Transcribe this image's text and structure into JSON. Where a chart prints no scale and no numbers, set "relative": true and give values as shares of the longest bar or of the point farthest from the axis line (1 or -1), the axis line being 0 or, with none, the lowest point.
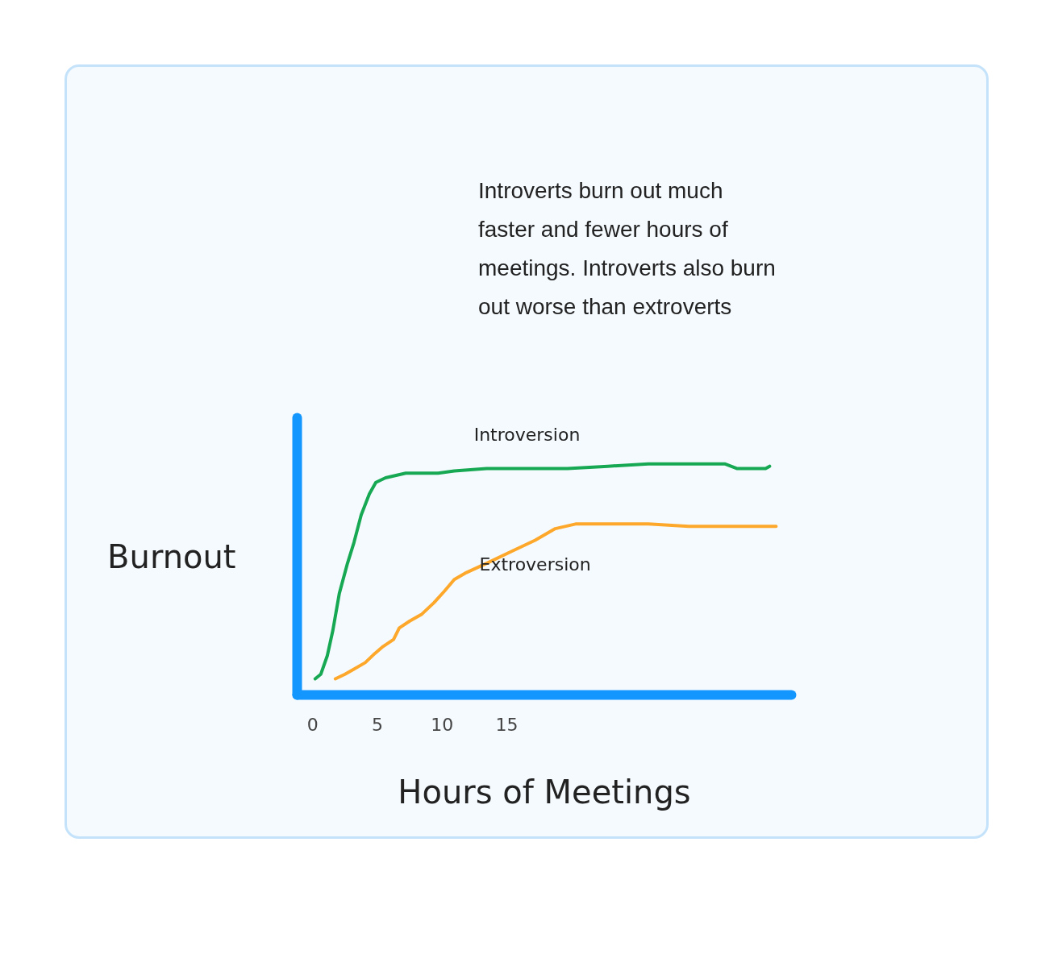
{
  "chart_data": {
    "type": "line",
    "relative": true,
    "xlabel": "Hours of Meetings",
    "ylabel": "Burnout",
    "xlim": [
      -1.2,
      37
    ],
    "xticks": [
      0,
      5,
      10,
      15
    ],
    "grid": false,
    "marker": "none",
    "line_style": "solid",
    "annotations": [
      "Introverts burn out much faster and fewer hours of meetings. Introverts also burn out worse than extroverts"
    ],
    "series": [
      {
        "name": "Introversion",
        "color": "#16a853",
        "x": [
          0.19,
          0.63,
          1.13,
          1.56,
          2.06,
          2.69,
          3.19,
          3.75,
          4.38,
          4.88,
          5.63,
          7.19,
          9.69,
          10.94,
          13.44,
          16.56,
          19.69,
          22.81,
          25.94,
          29.38,
          30.31,
          31.88,
          32.81,
          34.06,
          35.0,
          35.31
        ],
        "values": [
          0.07,
          0.09,
          0.17,
          0.28,
          0.44,
          0.57,
          0.66,
          0.78,
          0.87,
          0.92,
          0.94,
          0.96,
          0.96,
          0.97,
          0.98,
          0.98,
          0.98,
          0.99,
          1.0,
          1.0,
          1.0,
          1.0,
          0.98,
          0.98,
          0.98,
          0.99
        ]
      },
      {
        "name": "Extroversion",
        "color": "#fda82b",
        "x": [
          1.75,
          2.5,
          3.13,
          4.06,
          4.81,
          5.44,
          6.25,
          6.69,
          7.5,
          8.44,
          9.38,
          10.19,
          10.94,
          11.88,
          13.44,
          15.31,
          17.19,
          18.75,
          20.31,
          22.19,
          25.94,
          29.06,
          32.19,
          35.81
        ],
        "values": [
          0.07,
          0.09,
          0.11,
          0.14,
          0.18,
          0.21,
          0.24,
          0.29,
          0.32,
          0.35,
          0.4,
          0.45,
          0.5,
          0.53,
          0.57,
          0.62,
          0.67,
          0.72,
          0.74,
          0.74,
          0.74,
          0.73,
          0.73,
          0.73
        ]
      }
    ]
  }
}
